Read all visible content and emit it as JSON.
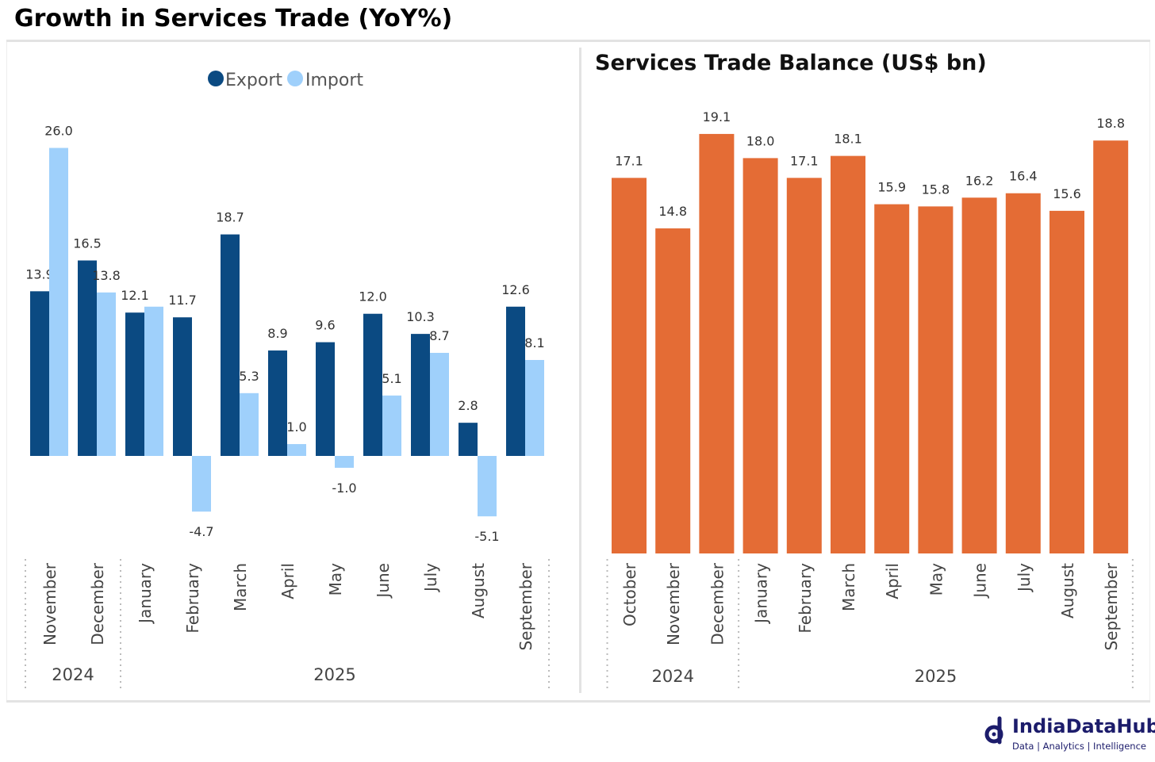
{
  "page_title": "Growth in Services Trade (YoY%)",
  "colors": {
    "export": "#0b4a82",
    "import": "#9fd0fb",
    "balance": "#e46c35",
    "brand": "#1c1c6b"
  },
  "chart_data": [
    {
      "type": "bar",
      "title": "",
      "legend": [
        "Export",
        "Import"
      ],
      "legend_position": "top-center",
      "categories": [
        "November",
        "December",
        "January",
        "February",
        "March",
        "April",
        "May",
        "June",
        "July",
        "August",
        "September"
      ],
      "year_groups": [
        {
          "label": "2024",
          "count": 2
        },
        {
          "label": "2025",
          "count": 9
        }
      ],
      "series": [
        {
          "name": "Export",
          "values": [
            13.9,
            16.5,
            12.1,
            11.7,
            18.7,
            8.9,
            9.6,
            12.0,
            10.3,
            2.8,
            12.6
          ],
          "labels": [
            "13.9",
            "16.5",
            "12.1",
            "11.7",
            "18.7",
            "8.9",
            "9.6",
            "12.0",
            "10.3",
            "2.8",
            "12.6"
          ]
        },
        {
          "name": "Import",
          "values": [
            26.0,
            13.8,
            12.6,
            -4.7,
            5.3,
            1.0,
            -1.0,
            5.1,
            8.7,
            -5.1,
            8.1
          ],
          "labels": [
            "26.0",
            "13.8",
            "",
            "-4.7",
            "5.3",
            "1.0",
            "-1.0",
            "5.1",
            "8.7",
            "-5.1",
            "8.1"
          ]
        }
      ],
      "xlabel": "",
      "ylabel": "",
      "ylim": [
        -8,
        28
      ],
      "grid": false
    },
    {
      "type": "bar",
      "title": "Services Trade Balance (US$ bn)",
      "categories": [
        "October",
        "November",
        "December",
        "January",
        "February",
        "March",
        "April",
        "May",
        "June",
        "July",
        "August",
        "September"
      ],
      "year_groups": [
        {
          "label": "2024",
          "count": 3
        },
        {
          "label": "2025",
          "count": 9
        }
      ],
      "series": [
        {
          "name": "Services Trade Balance",
          "values": [
            17.1,
            14.8,
            19.1,
            18.0,
            17.1,
            18.1,
            15.9,
            15.8,
            16.2,
            16.4,
            15.6,
            18.8
          ],
          "labels": [
            "17.1",
            "14.8",
            "19.1",
            "18.0",
            "17.1",
            "18.1",
            "15.9",
            "15.8",
            "16.2",
            "16.4",
            "15.6",
            "18.8"
          ]
        }
      ],
      "xlabel": "",
      "ylabel": "",
      "ylim": [
        0,
        21
      ],
      "grid": false
    }
  ],
  "brand": {
    "name": "IndiaDataHub",
    "tagline": "Data | Analytics | Intelligence"
  }
}
